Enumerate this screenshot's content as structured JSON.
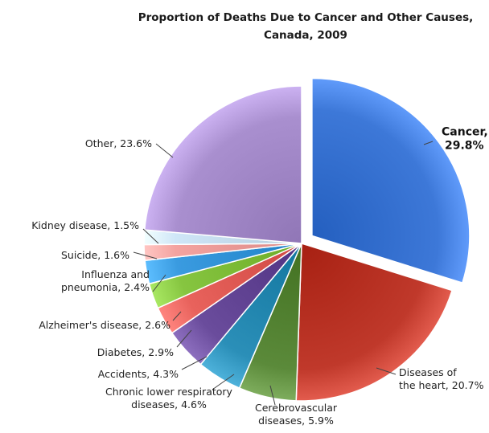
{
  "chart_data": {
    "type": "pie",
    "title_lines": [
      "Proportion of Deaths Due to Cancer and Other Causes,",
      "Canada, 2009"
    ],
    "slices": [
      {
        "label_lines": [
          "Cancer,",
          "29.8%"
        ],
        "value": 29.8,
        "color": "#3d78d8",
        "exploded": true,
        "emphasis": true
      },
      {
        "label_lines": [
          "Diseases of",
          "the heart, 20.7%"
        ],
        "value": 20.7,
        "color": "#c0392b"
      },
      {
        "label_lines": [
          "Cerebrovascular",
          "diseases, 5.9%"
        ],
        "value": 5.9,
        "color": "#5b8a3a"
      },
      {
        "label_lines": [
          "Chronic lower respiratory",
          "diseases, 4.6%"
        ],
        "value": 4.6,
        "color": "#2b8fb8"
      },
      {
        "label_lines": [
          "Accidents, 4.3%"
        ],
        "value": 4.3,
        "color": "#6a4c9c"
      },
      {
        "label_lines": [
          "Diabetes, 2.9%"
        ],
        "value": 2.9,
        "color": "#e8625c"
      },
      {
        "label_lines": [
          "Alzheimer's disease, 2.6%"
        ],
        "value": 2.6,
        "color": "#86c540"
      },
      {
        "label_lines": [
          "Influenza and",
          "pneumonia, 2.4%"
        ],
        "value": 2.4,
        "color": "#3a9be0"
      },
      {
        "label_lines": [
          "Suicide, 1.6%"
        ],
        "value": 1.6,
        "color": "#f4a3a0"
      },
      {
        "label_lines": [
          "Kidney disease, 1.5%"
        ],
        "value": 1.5,
        "color": "#cfe6f7"
      },
      {
        "label_lines": [
          "Other, 23.6%"
        ],
        "value": 23.6,
        "color": "#a98fcf"
      }
    ],
    "legend": "none",
    "data_labels": "outside with leader lines"
  }
}
